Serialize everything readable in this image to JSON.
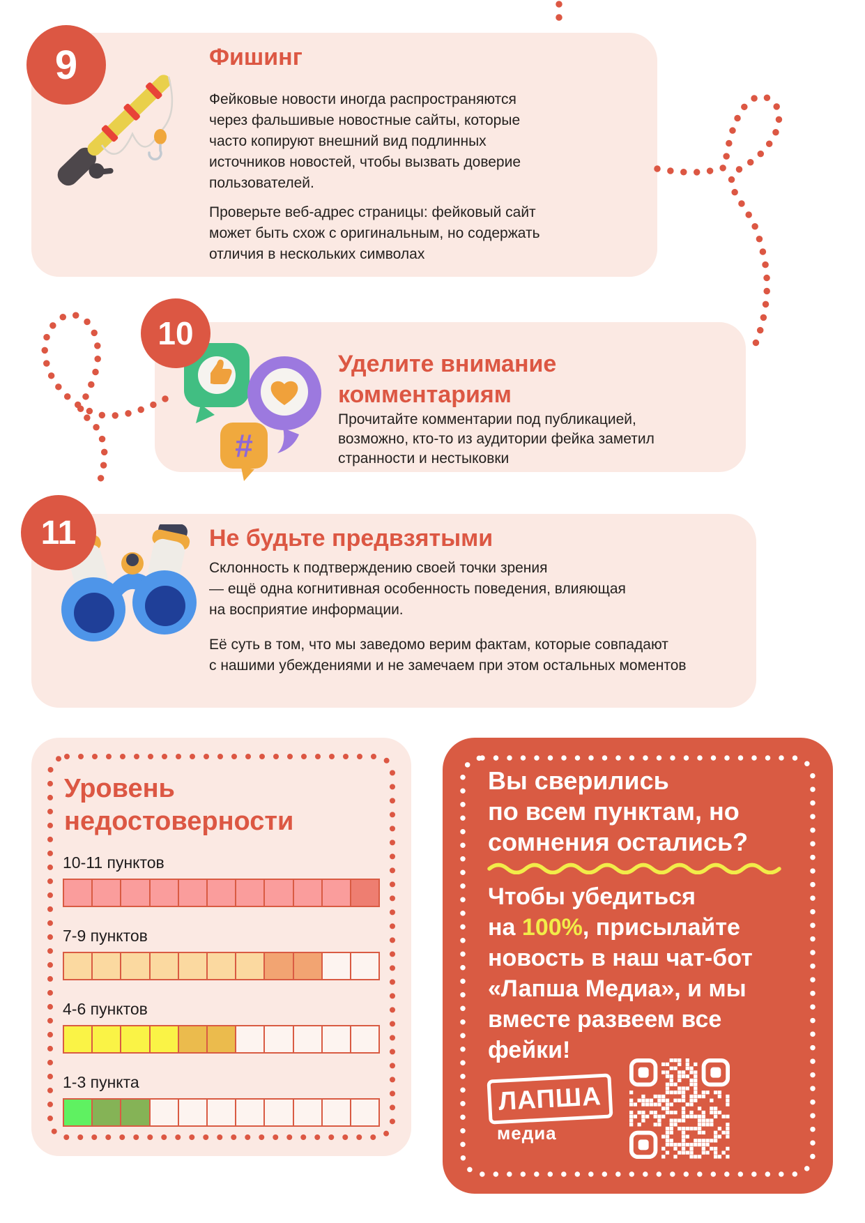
{
  "page": {
    "accent": "#DC5743",
    "card_bg": "#FBE9E3",
    "background": "#FFFFFF"
  },
  "cards": [
    {
      "number": "9",
      "icon": "fishing-rod",
      "title": "Фишинг",
      "p1": "Фейковые новости иногда распространяются\nчерез фальшивые новостные сайты, которые\nчасто копируют внешний вид подлинных\nисточников новостей, чтобы вызвать доверие\nпользователей.",
      "p2": "Проверьте веб-адрес страницы: фейковый сайт\nможет быть схож с оригинальным, но содержать\nотличия в нескольких символах"
    },
    {
      "number": "10",
      "icon": "social-bubbles",
      "title": "Уделите внимание\nкомментариям",
      "p1": "Прочитайте комментарии под публикацией,\nвозможно, кто-то из аудитории фейка заметил\nстранности и нестыковки"
    },
    {
      "number": "11",
      "icon": "binoculars",
      "title": "Не будьте предвзятыми",
      "p1": "Склонность к подтверждению своей точки зрения\n— ещё одна когнитивная особенность поведения, влияющая\nна восприятие информации.",
      "p2": "Её суть в том, что мы заведомо верим фактам, которые совпадают\nс нашими убеждениями и не замечаем при этом остальных моментов"
    }
  ],
  "unreliability": {
    "title": "Уровень\nнедостоверности",
    "rows": [
      {
        "label": "10-11 пунктов",
        "cells": [
          "pink",
          "pink",
          "pink",
          "pink",
          "pink",
          "pink",
          "pink",
          "pink",
          "pink",
          "pink",
          "dark_pink"
        ]
      },
      {
        "label": "7-9 пунктов",
        "cells": [
          "peach",
          "peach",
          "peach",
          "peach",
          "peach",
          "peach",
          "peach",
          "orange",
          "orange",
          "empty",
          "empty"
        ]
      },
      {
        "label": "4-6 пунктов",
        "cells": [
          "yellow",
          "yellow",
          "yellow",
          "yellow",
          "mustard",
          "mustard",
          "empty",
          "empty",
          "empty",
          "empty",
          "empty"
        ]
      },
      {
        "label": "1-3 пункта",
        "cells": [
          "green",
          "olive",
          "olive",
          "empty",
          "empty",
          "empty",
          "empty",
          "empty",
          "empty",
          "empty",
          "empty"
        ]
      }
    ],
    "palette": {
      "pink": "#FA9D9C",
      "dark_pink": "#EE7E71",
      "peach": "#FBD9A0",
      "orange": "#F2A472",
      "yellow": "#FAF346",
      "mustard": "#EBBB4D",
      "green": "#5FF161",
      "olive": "#85B356",
      "empty": "#FDF4F0",
      "border": "#D95B43"
    }
  },
  "cta": {
    "bg": "#D95B43",
    "heading": "Вы сверились\nпо всем пунктам, но\nсомнения остались?",
    "body_before": "Чтобы убедиться\nна ",
    "body_highlight": "100%",
    "body_after": ", присылайте\nновость в наш чат-бот\n«Лапша Медиа», и мы\nвместе развеем все\nфейки!",
    "highlight_color": "#F2EC49",
    "logo_text": "ЛАПША",
    "logo_sub": "медиа"
  }
}
